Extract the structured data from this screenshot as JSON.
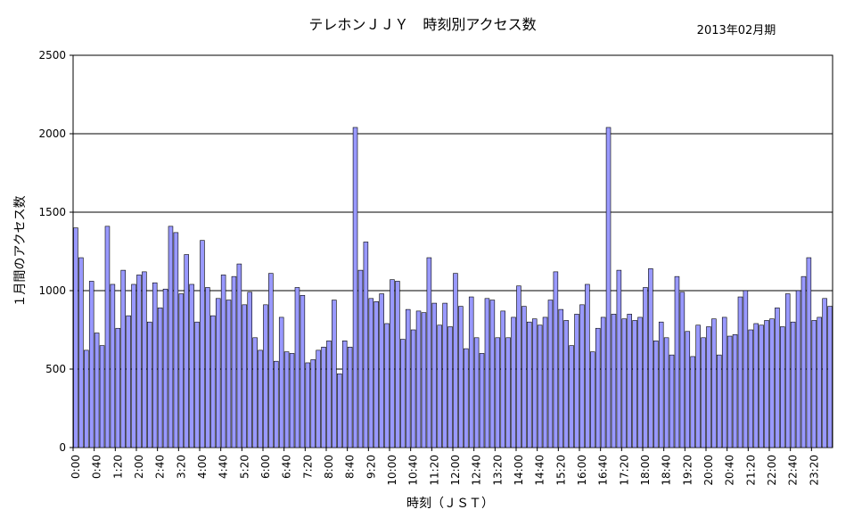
{
  "chart_data": {
    "type": "bar",
    "title": "テレホンＪＪＹ　時刻別アクセス数",
    "subtitle": "2013年02月期",
    "xlabel": "時刻（ＪＳＴ）",
    "ylabel": "１月間のアクセス数",
    "ylim": [
      0,
      2500
    ],
    "yticks": [
      0,
      500,
      1000,
      1500,
      2000,
      2500
    ],
    "grid": true,
    "legend": "none",
    "bar_color": "#9999ff",
    "bar_edge_color": "#000000",
    "interval_minutes": 10,
    "x_tick_labels": [
      "0:00",
      "0:40",
      "1:20",
      "2:00",
      "2:40",
      "3:20",
      "4:00",
      "4:40",
      "5:20",
      "6:00",
      "6:40",
      "7:20",
      "8:00",
      "8:40",
      "9:20",
      "10:00",
      "10:40",
      "11:20",
      "12:00",
      "12:40",
      "13:20",
      "14:00",
      "14:40",
      "15:20",
      "16:00",
      "16:40",
      "17:20",
      "18:00",
      "18:40",
      "19:20",
      "20:00",
      "20:40",
      "21:20",
      "22:00",
      "22:40",
      "23:20"
    ],
    "values": [
      1400,
      1210,
      620,
      1060,
      730,
      650,
      1410,
      1040,
      760,
      1130,
      840,
      1040,
      1100,
      1120,
      800,
      1050,
      890,
      1010,
      1410,
      1370,
      980,
      1230,
      1040,
      800,
      1320,
      1020,
      840,
      950,
      1100,
      940,
      1090,
      1170,
      910,
      990,
      700,
      620,
      910,
      1110,
      550,
      830,
      610,
      600,
      1020,
      970,
      540,
      560,
      620,
      640,
      680,
      940,
      470,
      680,
      640,
      2040,
      1130,
      1310,
      950,
      930,
      980,
      790,
      1070,
      1060,
      690,
      880,
      750,
      870,
      860,
      1210,
      920,
      780,
      920,
      770,
      1110,
      900,
      630,
      960,
      700,
      600,
      950,
      940,
      700,
      870,
      700,
      830,
      1030,
      900,
      800,
      820,
      780,
      830,
      940,
      1120,
      880,
      810,
      650,
      850,
      910,
      1040,
      610,
      760,
      830,
      2040,
      850,
      1130,
      820,
      850,
      810,
      830,
      1020,
      1140,
      680,
      800,
      700,
      590,
      1090,
      990,
      740,
      580,
      780,
      700,
      770,
      820,
      590,
      830,
      710,
      720,
      960,
      1000,
      750,
      790,
      780,
      810,
      820,
      890,
      770,
      980,
      800,
      1000,
      1090,
      1210,
      810,
      830,
      950,
      900
    ]
  }
}
